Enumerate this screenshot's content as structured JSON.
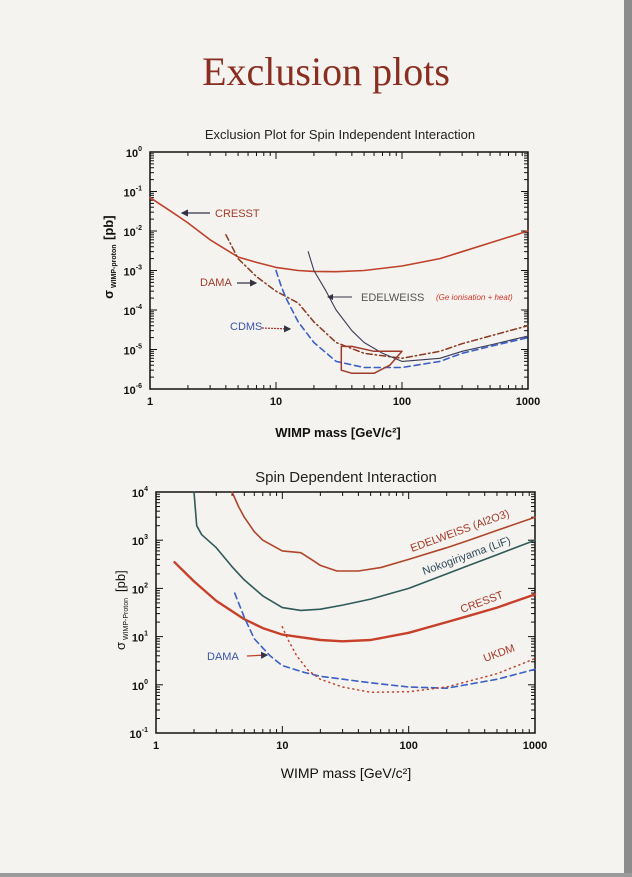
{
  "page": {
    "title": "Exclusion plots"
  },
  "chart_data": [
    {
      "type": "line",
      "title": "Exclusion Plot for Spin Independent Interaction",
      "xlabel": "WIMP mass [GeV/c²]",
      "ylabel": "σ WIMP-proton [pb]",
      "ylabel_main": "σ",
      "ylabel_sub": "WIMP-proton",
      "ylabel_unit": "[pb]",
      "xscale": "log",
      "yscale": "log",
      "xlim": [
        1,
        1000
      ],
      "ylim": [
        1e-06,
        1
      ],
      "xticks": [
        "1",
        "10",
        "100",
        "1000"
      ],
      "ytick_exponents": [
        0,
        -1,
        -2,
        -3,
        -4,
        -5,
        -6
      ],
      "annotation": "(Ge ionisation + heat)",
      "series": [
        {
          "name": "CRESST",
          "style": "solid",
          "color": "#c0402a",
          "x": [
            1,
            1.5,
            2,
            3,
            5,
            7,
            10,
            15,
            20,
            30,
            50,
            100,
            200,
            300,
            500,
            1000
          ],
          "y": [
            0.07,
            0.03,
            0.016,
            0.006,
            0.0022,
            0.0016,
            0.0012,
            0.001,
            0.00095,
            0.00093,
            0.001,
            0.0013,
            0.002,
            0.003,
            0.005,
            0.01
          ]
        },
        {
          "name": "DAMA",
          "style": "dashdot",
          "color": "#8b3a22",
          "x": [
            4,
            5,
            7,
            10,
            15,
            20,
            30,
            50,
            100,
            200,
            300,
            500,
            1000
          ],
          "y": [
            0.008,
            0.002,
            0.0007,
            0.0003,
            0.00015,
            5e-05,
            1.5e-05,
            8e-06,
            6e-06,
            9e-06,
            1.4e-05,
            2.2e-05,
            4e-05
          ]
        },
        {
          "name": "CDMS",
          "style": "dashed",
          "color": "#3a5fc8",
          "x": [
            10,
            11,
            12,
            15,
            20,
            30,
            50,
            100,
            200,
            300,
            500,
            1000
          ],
          "y": [
            0.001,
            0.0004,
            0.0002,
            5e-05,
            1.5e-05,
            5e-06,
            3.5e-06,
            3.5e-06,
            5e-06,
            8e-06,
            1.2e-05,
            2e-05
          ]
        },
        {
          "name": "EDELWEISS",
          "style": "solid-thin",
          "color": "#3a3a55",
          "x": [
            18,
            20,
            25,
            30,
            40,
            50,
            70,
            100,
            200,
            300,
            500,
            1000
          ],
          "y": [
            0.003,
            0.001,
            0.0003,
            0.0001,
            3e-05,
            1.5e-05,
            8e-06,
            5e-06,
            6e-06,
            9e-06,
            1.3e-05,
            2.2e-05
          ]
        },
        {
          "name": "DAMA region",
          "style": "closed",
          "color": "#a03a2a",
          "x": [
            33,
            33,
            40,
            60,
            80,
            100,
            90,
            60,
            40,
            33
          ],
          "y": [
            1.2e-05,
            3e-06,
            2.5e-06,
            2.5e-06,
            4e-06,
            9e-06,
            9e-06,
            9e-06,
            1.2e-05,
            1.2e-05
          ]
        }
      ],
      "labels": {
        "CRESST": "CRESST",
        "DAMA": "DAMA",
        "CDMS": "CDMS",
        "EDELWEISS": "EDELWEISS"
      }
    },
    {
      "type": "line",
      "title": "Spin Dependent Interaction",
      "xlabel": "WIMP mass [GeV/c²]",
      "ylabel": "σ WIMP-Proton [pb]",
      "ylabel_main": "σ",
      "ylabel_sub": "WIMP-Proton",
      "ylabel_unit": "[pb]",
      "xscale": "log",
      "yscale": "log",
      "xlim": [
        1,
        1000
      ],
      "ylim": [
        0.1,
        10000
      ],
      "xticks": [
        "1",
        "10",
        "100",
        "1000"
      ],
      "ytick_exponents": [
        4,
        3,
        2,
        1,
        0,
        -1
      ],
      "series": [
        {
          "name": "EDELWEISS (Al2O3)",
          "style": "solid",
          "color": "#b0452a",
          "x": [
            4,
            4.5,
            5,
            6,
            7,
            10,
            14,
            17,
            20,
            27,
            40,
            60,
            100,
            200,
            300,
            500,
            1000
          ],
          "y": [
            10000,
            5000,
            3000,
            1500,
            1000,
            600,
            550,
            400,
            300,
            230,
            230,
            270,
            400,
            700,
            1000,
            1600,
            3000
          ]
        },
        {
          "name": "Nokogiriyama (LiF)",
          "style": "solid",
          "color": "#2f5a5a",
          "x": [
            2,
            2.1,
            2.3,
            3,
            4,
            5,
            7,
            10,
            14,
            20,
            30,
            50,
            100,
            200,
            300,
            500,
            1000
          ],
          "y": [
            10000,
            2000,
            1300,
            700,
            280,
            150,
            70,
            40,
            35,
            37,
            45,
            60,
            100,
            200,
            300,
            500,
            1000
          ]
        },
        {
          "name": "CRESST",
          "style": "solid-thick",
          "color": "#c8402a",
          "x": [
            1.4,
            2,
            3,
            5,
            7,
            10,
            20,
            30,
            50,
            100,
            200,
            300,
            500,
            1000
          ],
          "y": [
            350,
            140,
            55,
            23,
            15,
            11,
            8.5,
            8,
            8.5,
            12,
            20,
            27,
            40,
            75
          ]
        },
        {
          "name": "DAMA",
          "style": "dashed",
          "color": "#3a5fc8",
          "x": [
            4.2,
            5,
            6,
            8,
            10,
            15,
            20,
            50,
            100,
            200,
            500,
            1000
          ],
          "y": [
            80,
            25,
            9,
            4,
            2.5,
            1.8,
            1.5,
            1.1,
            0.9,
            0.85,
            1.3,
            2.1
          ]
        },
        {
          "name": "UKDM",
          "style": "dotted",
          "color": "#c0402a",
          "x": [
            10,
            11,
            13,
            16,
            20,
            30,
            50,
            100,
            200,
            500,
            1000
          ],
          "y": [
            16,
            9,
            4,
            2,
            1.3,
            0.9,
            0.7,
            0.72,
            0.9,
            1.7,
            3.5
          ]
        }
      ],
      "labels": {
        "EDELWEISS": "EDELWEISS (Al2O3)",
        "Nokogiriyama": "Nokogiriyama (LiF)",
        "CRESST": "CRESST",
        "UKDM": "UKDM",
        "DAMA": "DAMA"
      }
    }
  ]
}
